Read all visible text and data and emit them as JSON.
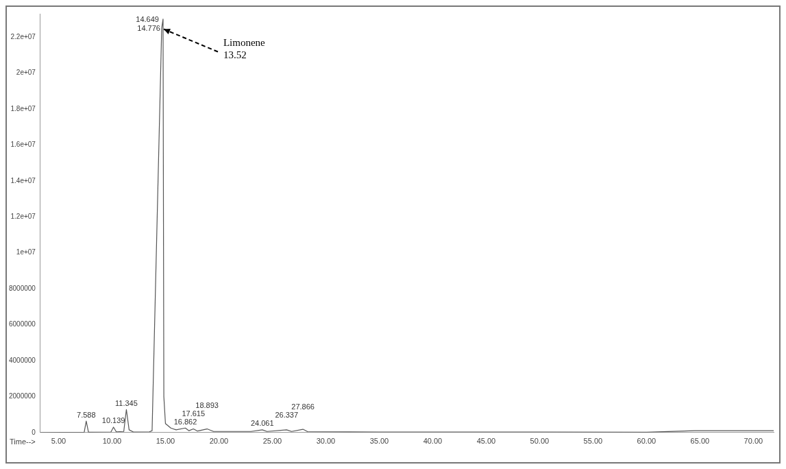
{
  "chart_data": {
    "type": "line",
    "xlabel": "Time-->",
    "series": [
      {
        "color": "#555555",
        "x": [
          3.3,
          7.4,
          7.588,
          7.8,
          9.9,
          10.139,
          10.4,
          11.1,
          11.345,
          11.6,
          12.0,
          13.5,
          13.75,
          14.649,
          14.776,
          14.85,
          15.0,
          15.5,
          16.0,
          16.862,
          17.2,
          17.615,
          18.0,
          18.893,
          19.5,
          23.0,
          24.061,
          24.5,
          26.337,
          26.8,
          27.866,
          28.3,
          35,
          40,
          50,
          60,
          64.5,
          71.9
        ],
        "values": [
          0,
          20000,
          640000,
          20000,
          30000,
          300000,
          40000,
          60000,
          1280000,
          150000,
          30000,
          40000,
          100000,
          22500000,
          23000000,
          2000000,
          500000,
          250000,
          150000,
          250000,
          100000,
          200000,
          80000,
          200000,
          60000,
          60000,
          150000,
          60000,
          150000,
          60000,
          180000,
          50000,
          30000,
          30000,
          30000,
          20000,
          100000,
          100000
        ]
      }
    ],
    "xlim": [
      3.3,
      71.9
    ],
    "xticks": [
      {
        "value": 5,
        "label": "5.00"
      },
      {
        "value": 10,
        "label": "10.00"
      },
      {
        "value": 15,
        "label": "15.00"
      },
      {
        "value": 20,
        "label": "20.00"
      },
      {
        "value": 25,
        "label": "25.00"
      },
      {
        "value": 30,
        "label": "30.00"
      },
      {
        "value": 35,
        "label": "35.00"
      },
      {
        "value": 40,
        "label": "40.00"
      },
      {
        "value": 45,
        "label": "45.00"
      },
      {
        "value": 50,
        "label": "50.00"
      },
      {
        "value": 55,
        "label": "55.00"
      },
      {
        "value": 60,
        "label": "60.00"
      },
      {
        "value": 65,
        "label": "65.00"
      },
      {
        "value": 70,
        "label": "70.00"
      }
    ],
    "ylim": [
      0,
      23300000
    ],
    "yticks": [
      0,
      2000000,
      4000000,
      6000000,
      8000000,
      {
        "value": 10000000,
        "label": "1e+07"
      },
      {
        "value": 12000000,
        "label": "1.2e+07"
      },
      {
        "value": 14000000,
        "label": "1.4e+07"
      },
      {
        "value": 16000000,
        "label": "1.6e+07"
      },
      {
        "value": 18000000,
        "label": "1.8e+07"
      },
      {
        "value": 20000000,
        "label": "2e+07"
      },
      {
        "value": 22000000,
        "label": "2.2e+07"
      }
    ],
    "grid": false,
    "legend": false,
    "marker": "none",
    "line_style": "solid",
    "annotations": [
      {
        "text": "7.588",
        "x": 7.588,
        "y": 640000
      },
      {
        "text": "10.139",
        "x": 10.139,
        "y": 300000
      },
      {
        "text": "11.345",
        "x": 11.345,
        "y": 1280000
      },
      {
        "text": "14.649",
        "x": 14.649,
        "y": 22500000
      },
      {
        "text": "14.776",
        "x": 14.776,
        "y": 23000000
      },
      {
        "text": "16.862",
        "x": 16.862,
        "y": 250000
      },
      {
        "text": "17.615",
        "x": 17.615,
        "y": 200000
      },
      {
        "text": "18.893",
        "x": 18.893,
        "y": 200000
      },
      {
        "text": "24.061",
        "x": 24.061,
        "y": 150000
      },
      {
        "text": "26.337",
        "x": 26.337,
        "y": 150000
      },
      {
        "text": "27.866",
        "x": 27.866,
        "y": 180000
      },
      {
        "text": "Limonene\n13.52",
        "x": 14.649,
        "y": 22500000
      }
    ]
  }
}
